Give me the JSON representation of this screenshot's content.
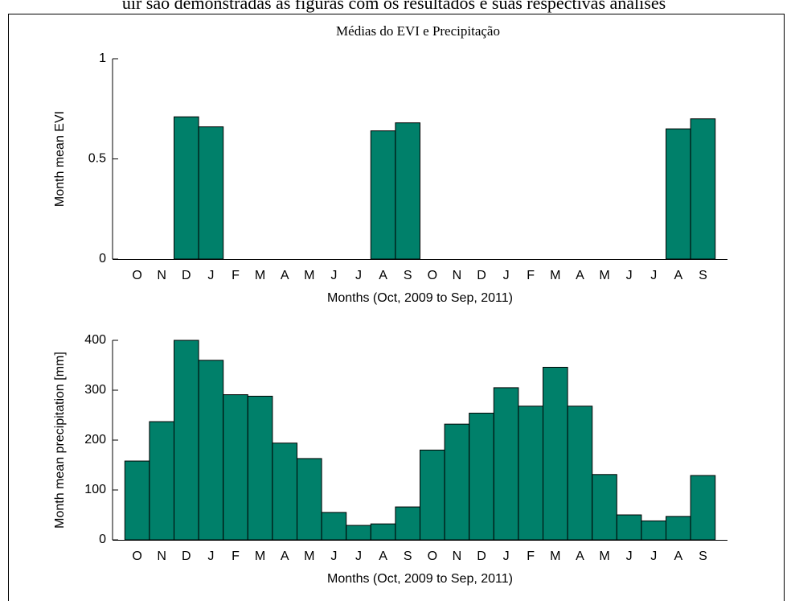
{
  "caption": "uir são demonstradas as figuras com os resultados e suas respectivas análises",
  "chart_data": [
    {
      "type": "bar",
      "title": "Médias do EVI e Precipitação",
      "x_label": "Months (Oct, 2009 to Sep, 2011)",
      "y_label": "Month mean EVI",
      "categories": [
        "O",
        "N",
        "D",
        "J",
        "F",
        "M",
        "A",
        "M",
        "J",
        "J",
        "A",
        "S",
        "O",
        "N",
        "D",
        "J",
        "F",
        "M",
        "A",
        "M",
        "J",
        "J",
        "A",
        "S"
      ],
      "values": [
        0,
        0,
        0.71,
        0.66,
        0,
        0,
        0,
        0,
        0,
        0,
        0.64,
        0.68,
        0,
        0,
        0,
        0,
        0,
        0,
        0,
        0,
        0,
        0,
        0.65,
        0.7
      ],
      "color": "#00806a",
      "ylim": [
        0,
        1
      ],
      "yticks": [
        0,
        0.5,
        1
      ]
    },
    {
      "type": "bar",
      "x_label": "Months (Oct, 2009 to Sep, 2011)",
      "y_label": "Month mean precipitation [mm]",
      "categories": [
        "O",
        "N",
        "D",
        "J",
        "F",
        "M",
        "A",
        "M",
        "J",
        "J",
        "A",
        "S",
        "O",
        "N",
        "D",
        "J",
        "F",
        "M",
        "A",
        "M",
        "J",
        "J",
        "A",
        "S"
      ],
      "values": [
        158,
        237,
        400,
        360,
        291,
        288,
        194,
        163,
        55,
        29,
        32,
        66,
        180,
        232,
        254,
        305,
        268,
        346,
        268,
        131,
        50,
        38,
        47,
        129
      ],
      "color": "#00806a",
      "ylim": [
        0,
        400
      ],
      "yticks": [
        0,
        100,
        200,
        300,
        400
      ]
    }
  ]
}
